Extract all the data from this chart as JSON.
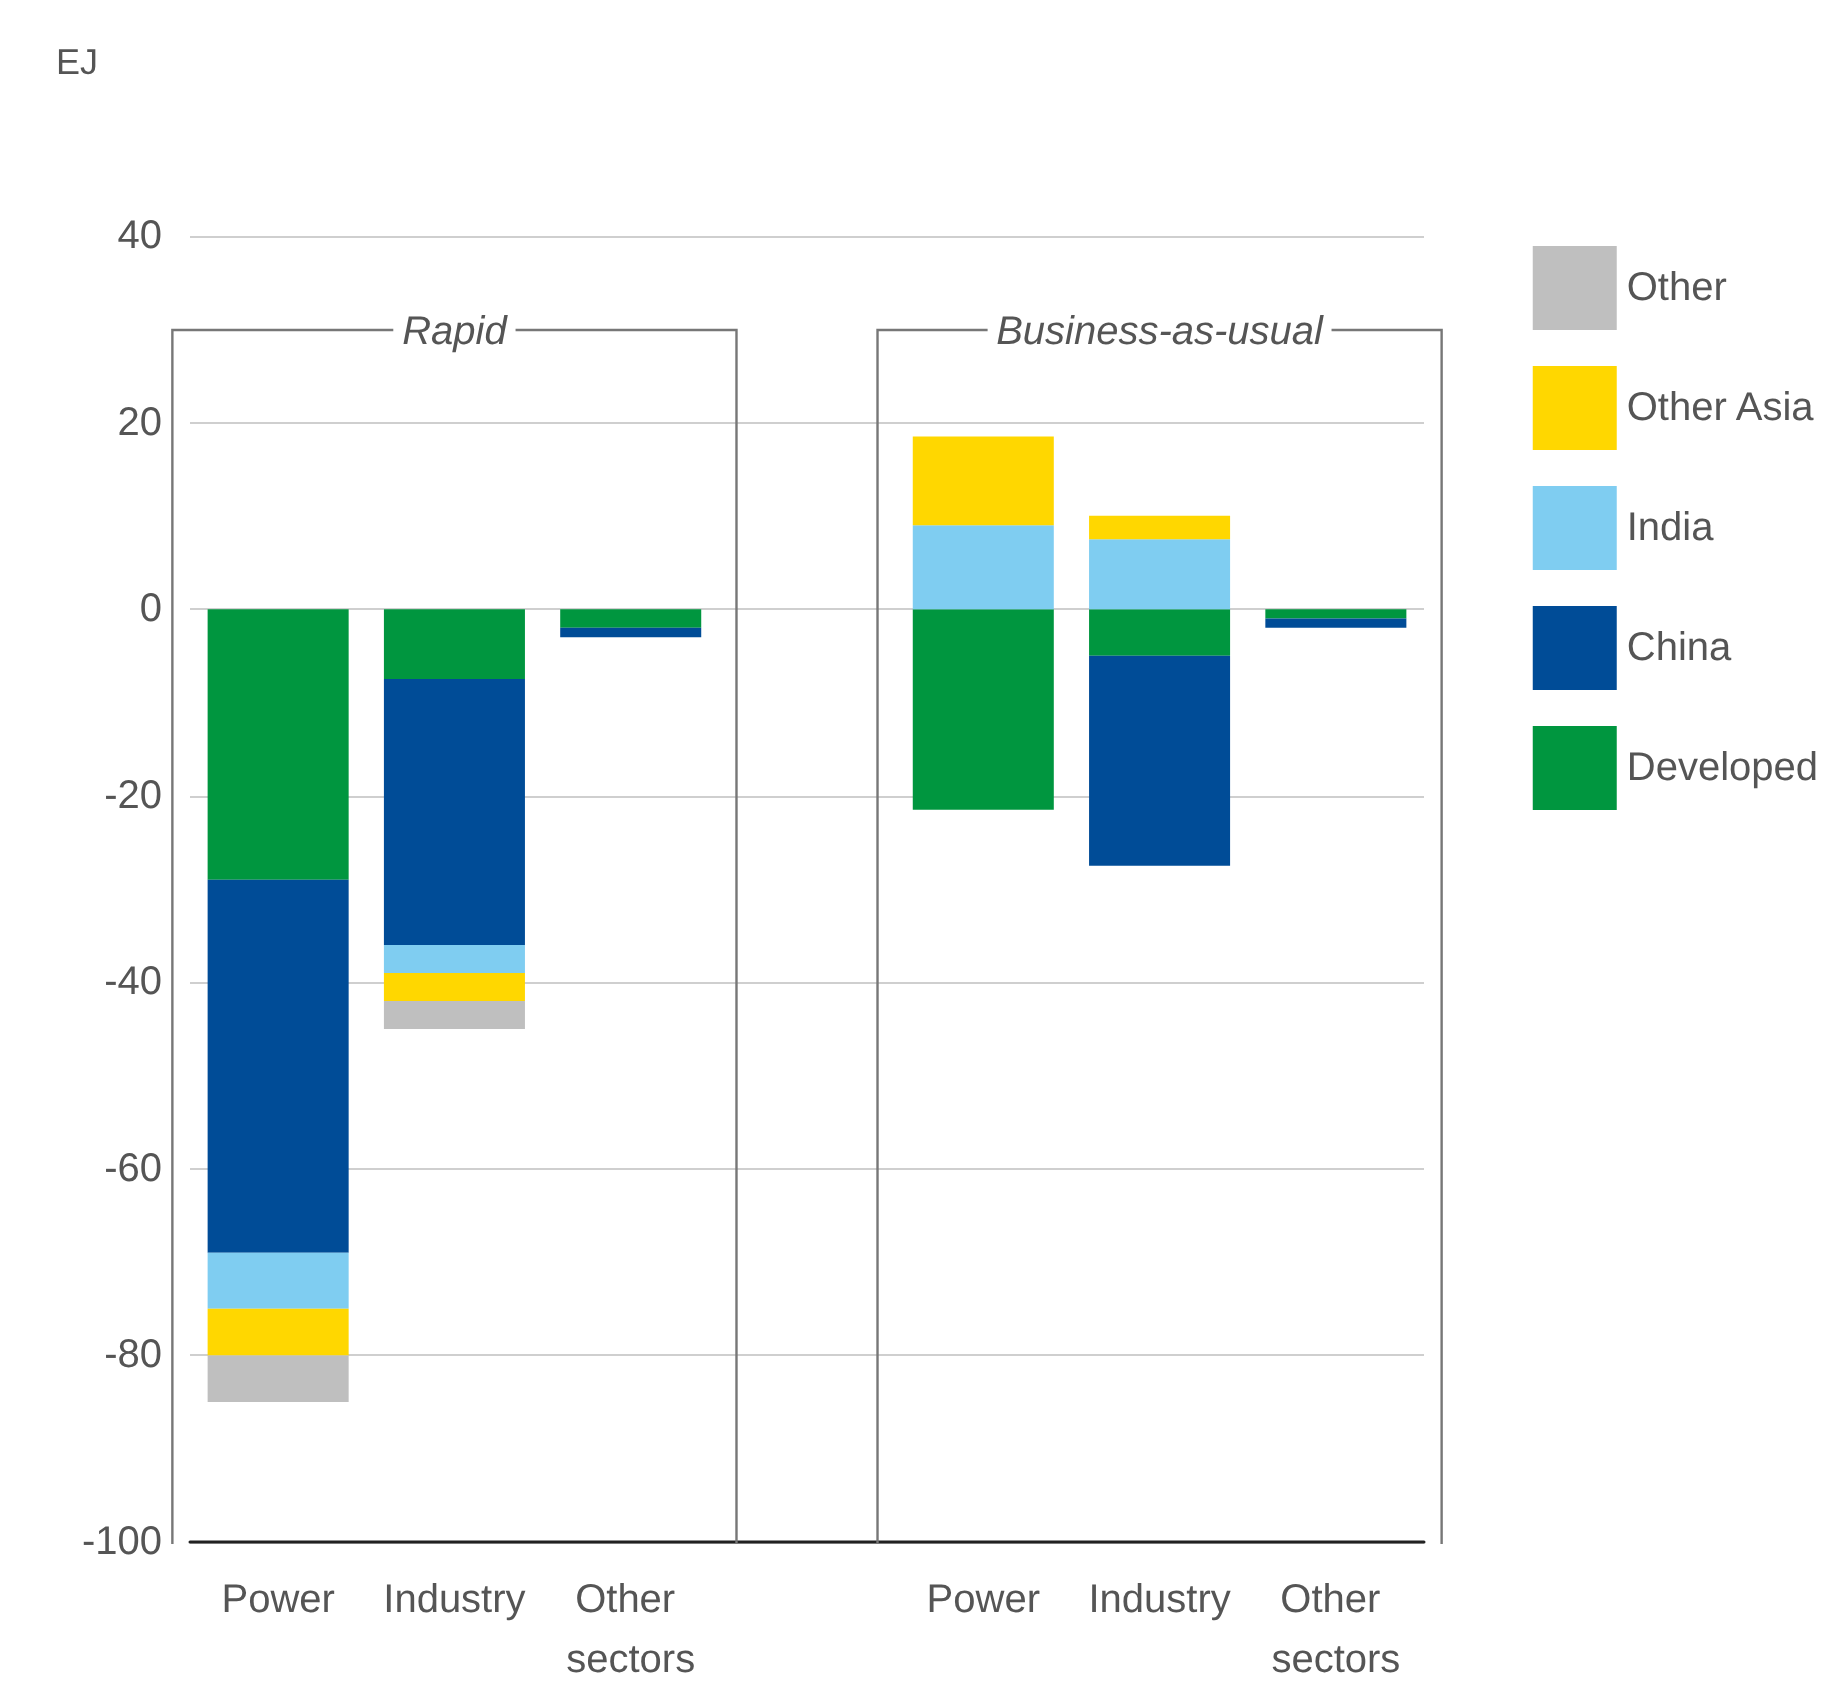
{
  "chart_data": {
    "type": "bar",
    "ylabel": "EJ",
    "stacked": true,
    "categories": [
      "Power",
      "Industry",
      "Other sectors",
      null,
      "Power",
      "Industry",
      "Other sectors"
    ],
    "series": [
      {
        "name": "Developed",
        "color": "#00963f",
        "values": [
          -29,
          -7.5,
          -2,
          null,
          -21.5,
          -5,
          -1
        ]
      },
      {
        "name": "China",
        "color": "#004c97",
        "values": [
          -40,
          -28.5,
          -1,
          null,
          null,
          -22.5,
          -1
        ]
      },
      {
        "name": "India",
        "color": "#7fcdf1",
        "values": [
          -6,
          -3,
          null,
          null,
          9,
          7.5,
          null
        ]
      },
      {
        "name": "Other Asia",
        "color": "#ffd700",
        "values": [
          -5,
          -3,
          null,
          null,
          9.5,
          2.5,
          null
        ]
      },
      {
        "name": "Other",
        "color": "#bfbfbf",
        "values": [
          -5,
          -3,
          null,
          null,
          null,
          null,
          null
        ]
      }
    ],
    "annotations": [
      "Rapid",
      "Business-as-usual"
    ],
    "ylim": [
      -100,
      40
    ],
    "yticks": [
      -100,
      -80,
      -60,
      -40,
      -20,
      0,
      20,
      40
    ],
    "grid": "y",
    "legend": "right"
  }
}
